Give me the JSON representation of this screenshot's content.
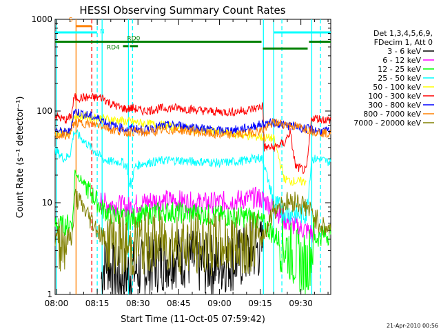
{
  "chart_data": {
    "type": "line",
    "title": "HESSI Observing Summary Count Rates",
    "xlabel": "Start Time (11-Oct-05 07:59:42)",
    "ylabel": "Count Rate (s⁻¹ detector⁻¹)",
    "x_unit": "minutes after 08:00 UT",
    "xlim": [
      -0.5,
      101
    ],
    "ylim": [
      1,
      1000
    ],
    "yscale": "log",
    "x_ticks": [
      {
        "x": 0,
        "label": "08:00"
      },
      {
        "x": 15,
        "label": "08:15"
      },
      {
        "x": 30,
        "label": "08:30"
      },
      {
        "x": 45,
        "label": "08:45"
      },
      {
        "x": 60,
        "label": "09:00"
      },
      {
        "x": 75,
        "label": "09:15"
      },
      {
        "x": 90,
        "label": "09:30"
      }
    ],
    "y_ticks": [
      {
        "y": 1,
        "label": "1"
      },
      {
        "y": 10,
        "label": "10"
      },
      {
        "y": 100,
        "label": "100"
      },
      {
        "y": 1000,
        "label": "1000"
      }
    ],
    "legend": {
      "placement": "right",
      "header": [
        "Det 1,3,4,5,6,9,",
        "FDecim 1, Att 0"
      ]
    },
    "series": [
      {
        "name": "3 - 6 keV",
        "color": "#000000",
        "points": [
          [
            16.5,
            1.5
          ],
          [
            18,
            2.5
          ],
          [
            20,
            2.0
          ],
          [
            22,
            1.5
          ],
          [
            25,
            1.6
          ],
          [
            28,
            1.8
          ],
          [
            32,
            1.9
          ],
          [
            36,
            2.2
          ],
          [
            40,
            2.4
          ],
          [
            44,
            2.6
          ],
          [
            48,
            2.5
          ],
          [
            52,
            2.2
          ],
          [
            56,
            2.1
          ],
          [
            60,
            2.2
          ],
          [
            64,
            2.3
          ],
          [
            68,
            2.5
          ],
          [
            72,
            3.0
          ],
          [
            76,
            3.2
          ]
        ]
      },
      {
        "name": "6 - 12 keV",
        "color": "#ff00ff",
        "points": [
          [
            16,
            10.5
          ],
          [
            18,
            9.8
          ],
          [
            22,
            9.5
          ],
          [
            26,
            9.0
          ],
          [
            27,
            9.0
          ],
          [
            30,
            9.8
          ],
          [
            35,
            10.5
          ],
          [
            40,
            10.6
          ],
          [
            45,
            10.5
          ],
          [
            50,
            10.0
          ],
          [
            55,
            10.0
          ],
          [
            60,
            10.1
          ],
          [
            65,
            10.5
          ],
          [
            70,
            11.0
          ],
          [
            74,
            11.4
          ],
          [
            76,
            10.8
          ],
          [
            80,
            9.0
          ],
          [
            84,
            6.5
          ],
          [
            88,
            5.5
          ],
          [
            92,
            5.0
          ],
          [
            95,
            4.5
          ]
        ]
      },
      {
        "name": "12 - 25 keV",
        "color": "#00ff00",
        "points": [
          [
            -0.5,
            5.8
          ],
          [
            2,
            5.6
          ],
          [
            4,
            5.8
          ],
          [
            6,
            6.2
          ],
          [
            6.8,
            22
          ],
          [
            17,
            8.5
          ],
          [
            20,
            7.5
          ],
          [
            24,
            7.0
          ],
          [
            26,
            6.5
          ],
          [
            30,
            7.0
          ],
          [
            36,
            7.8
          ],
          [
            42,
            8.0
          ],
          [
            48,
            7.6
          ],
          [
            54,
            7.5
          ],
          [
            60,
            7.2
          ],
          [
            66,
            7.0
          ],
          [
            72,
            7.0
          ],
          [
            76,
            6.0
          ],
          [
            80,
            4.5
          ],
          [
            84,
            3.5
          ],
          [
            88,
            2.5
          ],
          [
            92,
            2.0
          ],
          [
            95,
            4.0
          ],
          [
            98,
            4.5
          ],
          [
            101,
            4.5
          ]
        ]
      },
      {
        "name": "25 - 50 keV",
        "color": "#00ffff",
        "points": [
          [
            -0.5,
            38
          ],
          [
            1,
            34
          ],
          [
            3,
            30
          ],
          [
            5,
            34
          ],
          [
            6.5,
            60
          ],
          [
            17,
            30
          ],
          [
            20,
            28
          ],
          [
            24,
            28
          ],
          [
            26,
            25
          ],
          [
            27,
            14
          ],
          [
            29,
            25
          ],
          [
            32,
            27
          ],
          [
            36,
            28
          ],
          [
            40,
            29
          ],
          [
            45,
            29
          ],
          [
            50,
            28
          ],
          [
            55,
            28
          ],
          [
            60,
            27
          ],
          [
            65,
            28
          ],
          [
            70,
            29
          ],
          [
            74,
            31
          ],
          [
            76,
            30
          ],
          [
            80,
            10
          ],
          [
            84,
            8
          ],
          [
            88,
            7.5
          ],
          [
            92,
            7.5
          ],
          [
            94,
            30
          ],
          [
            97,
            30
          ],
          [
            100,
            28
          ],
          [
            101,
            28
          ]
        ]
      },
      {
        "name": "50 - 100 keV",
        "color": "#ffff00",
        "points": [
          [
            -0.5,
            60
          ],
          [
            3,
            58
          ],
          [
            5,
            60
          ],
          [
            6.5,
            90
          ],
          [
            80,
            50
          ],
          [
            84,
            18
          ],
          [
            88,
            17
          ],
          [
            92,
            17
          ]
        ]
      },
      {
        "name": "100 - 300 keV",
        "color": "#ff0000",
        "points": [
          [
            -0.5,
            90
          ],
          [
            2,
            82
          ],
          [
            4,
            80
          ],
          [
            5.5,
            90
          ],
          [
            6.5,
            140
          ],
          [
            17,
            140
          ],
          [
            20,
            120
          ],
          [
            24,
            108
          ],
          [
            26,
            105
          ],
          [
            28,
            108
          ],
          [
            32,
            100
          ],
          [
            36,
            104
          ],
          [
            40,
            108
          ],
          [
            45,
            108
          ],
          [
            50,
            104
          ],
          [
            55,
            100
          ],
          [
            60,
            98
          ],
          [
            65,
            98
          ],
          [
            70,
            102
          ],
          [
            74,
            108
          ],
          [
            76,
            115
          ],
          [
            76.5,
            40
          ],
          [
            80,
            40
          ],
          [
            84,
            45
          ],
          [
            86,
            60
          ],
          [
            88,
            25
          ],
          [
            92,
            22
          ],
          [
            94,
            85
          ],
          [
            97,
            82
          ],
          [
            100,
            80
          ],
          [
            101,
            80
          ]
        ]
      },
      {
        "name": "300 - 800 keV",
        "color": "#0000ff",
        "points": [
          [
            -0.5,
            62
          ],
          [
            3,
            58
          ],
          [
            5,
            60
          ],
          [
            6.5,
            100
          ],
          [
            17,
            80
          ],
          [
            20,
            70
          ],
          [
            24,
            66
          ],
          [
            26,
            62
          ],
          [
            28,
            65
          ],
          [
            32,
            62
          ],
          [
            36,
            66
          ],
          [
            40,
            69
          ],
          [
            45,
            70
          ],
          [
            50,
            67
          ],
          [
            55,
            64
          ],
          [
            60,
            61
          ],
          [
            65,
            62
          ],
          [
            70,
            65
          ],
          [
            74,
            70
          ],
          [
            76,
            72
          ],
          [
            80,
            75
          ],
          [
            84,
            70
          ],
          [
            88,
            68
          ],
          [
            92,
            64
          ],
          [
            95,
            62
          ],
          [
            98,
            60
          ],
          [
            101,
            60
          ]
        ]
      },
      {
        "name": "800 - 7000 keV",
        "color": "#ff8000",
        "points": [
          [
            -0.5,
            55
          ],
          [
            3,
            54
          ],
          [
            5,
            55
          ],
          [
            6.5,
            75
          ],
          [
            17,
            70
          ],
          [
            20,
            63
          ],
          [
            24,
            60
          ],
          [
            26,
            58
          ],
          [
            28,
            60
          ],
          [
            32,
            58
          ],
          [
            36,
            60
          ],
          [
            40,
            62
          ],
          [
            45,
            62
          ],
          [
            50,
            60
          ],
          [
            55,
            57
          ],
          [
            60,
            55
          ],
          [
            65,
            55
          ],
          [
            70,
            57
          ],
          [
            74,
            60
          ],
          [
            76,
            62
          ],
          [
            80,
            75
          ],
          [
            84,
            72
          ],
          [
            88,
            68
          ],
          [
            92,
            64
          ],
          [
            95,
            60
          ],
          [
            98,
            58
          ],
          [
            101,
            56
          ]
        ]
      },
      {
        "name": "7000 - 20000 keV",
        "color": "#808000",
        "points": [
          [
            -0.5,
            4.2
          ],
          [
            2,
            3.8
          ],
          [
            4,
            4.0
          ],
          [
            6,
            4.5
          ],
          [
            6.8,
            12
          ],
          [
            17,
            4.2
          ],
          [
            20,
            3.8
          ],
          [
            24,
            3.6
          ],
          [
            27,
            3.0
          ],
          [
            30,
            3.5
          ],
          [
            36,
            3.7
          ],
          [
            42,
            3.8
          ],
          [
            48,
            3.6
          ],
          [
            54,
            3.5
          ],
          [
            60,
            3.5
          ],
          [
            66,
            3.6
          ],
          [
            72,
            3.8
          ],
          [
            76,
            4.2
          ],
          [
            80,
            8.5
          ],
          [
            84,
            10.0
          ],
          [
            88,
            10.5
          ],
          [
            92,
            9.0
          ],
          [
            95,
            7.0
          ],
          [
            98,
            5.5
          ],
          [
            101,
            5.0
          ]
        ]
      }
    ],
    "vertical_markers": [
      {
        "x": 0.0,
        "color": "#00ffff",
        "style": "solid"
      },
      {
        "x": 7.2,
        "color": "#ff8000",
        "style": "solid"
      },
      {
        "x": 13.0,
        "color": "#ff0000",
        "style": "dashed"
      },
      {
        "x": 15.0,
        "color": "#00ffff",
        "style": "dashed"
      },
      {
        "x": 16.8,
        "color": "#00ffff",
        "style": "solid"
      },
      {
        "x": 26.5,
        "color": "#00ffff",
        "style": "solid"
      },
      {
        "x": 28.0,
        "color": "#00ffff",
        "style": "dashed"
      },
      {
        "x": 76.2,
        "color": "#00ffff",
        "style": "solid"
      },
      {
        "x": 80.0,
        "color": "#00ffff",
        "style": "solid"
      },
      {
        "x": 83.0,
        "color": "#00ffff",
        "style": "dashed"
      },
      {
        "x": 94.0,
        "color": "#00ffff",
        "style": "solid"
      },
      {
        "x": 97.2,
        "color": "#00ffff",
        "style": "dashed"
      }
    ],
    "flag_bars": [
      {
        "label": "S",
        "color": "#ff8000",
        "x0": 7.2,
        "x1": 13.0,
        "y": 842,
        "label_x": 4.5,
        "label_y": 940
      },
      {
        "label": "N",
        "color": "#00ffff",
        "x0": -0.5,
        "x1": 15.0,
        "y": 720,
        "label_x": 16.0,
        "label_y": 700
      },
      {
        "label": "",
        "color": "#00ffff",
        "x0": 80.0,
        "x1": 101.0,
        "y": 720
      },
      {
        "label": "RD0",
        "color": "#008000",
        "x0": -0.5,
        "x1": 75.5,
        "y": 570,
        "label_x": 26.0,
        "label_y": 590
      },
      {
        "label": "",
        "color": "#008000",
        "x0": 76.0,
        "x1": 92.5,
        "y": 480
      },
      {
        "label": "",
        "color": "#008000",
        "x0": 93.0,
        "x1": 101.0,
        "y": 570
      },
      {
        "label": "RD4",
        "color": "#008000",
        "x0": 24.5,
        "x1": 26.5,
        "y": 510,
        "label_x": 18.5,
        "label_y": 470
      },
      {
        "label": "",
        "color": "#008000",
        "x0": 27.0,
        "x1": 30.0,
        "y": 510
      }
    ]
  },
  "timestamp": "21-Apr-2010 00:56"
}
